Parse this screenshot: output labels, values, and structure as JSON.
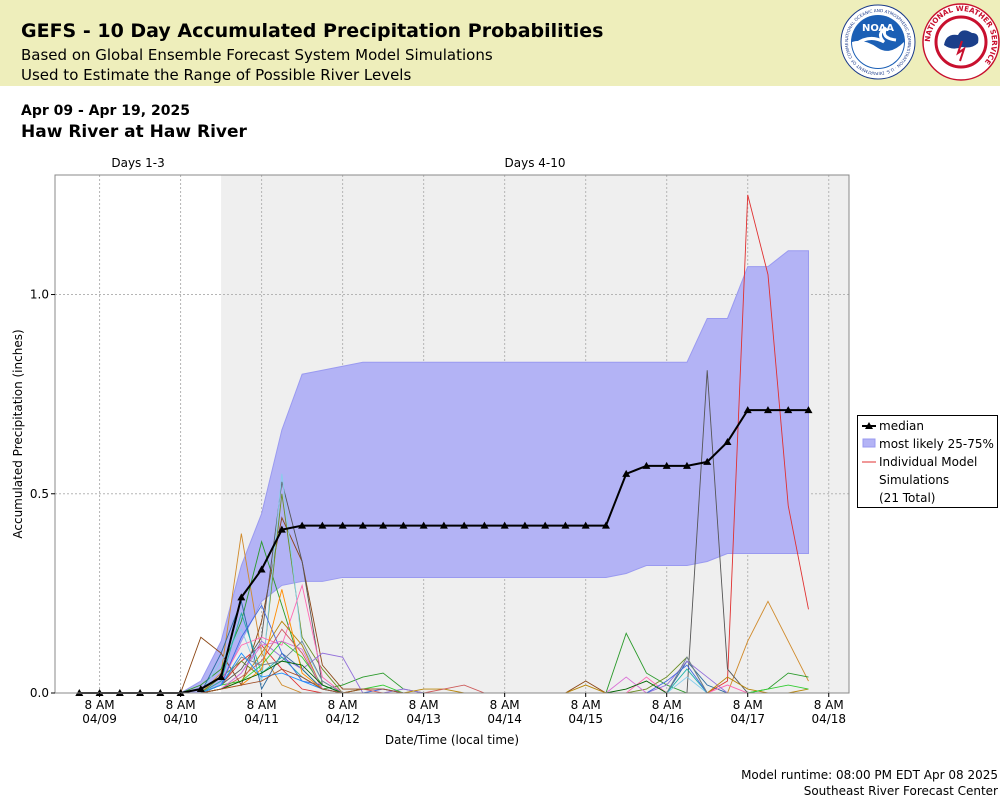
{
  "header": {
    "title": "GEFS - 10 Day Accumulated Precipitation Probabilities",
    "subtitle1": "Based on Global Ensemble Forecast System Model Simulations",
    "subtitle2": "Used to Estimate the Range of Possible River Levels",
    "logo_noaa_text": "NOAA",
    "logo_noaa_ring": "NATIONAL OCEANIC AND ATMOSPHERIC ADMINISTRATION · U.S. DEPARTMENT OF COMMERCE",
    "logo_nws_ring": "NATIONAL WEATHER SERVICE"
  },
  "date_range": "Apr 09 - Apr 19, 2025",
  "station": "Haw River at Haw River",
  "footer": {
    "runtime": "Model runtime: 08:00 PM EDT Apr 08 2025",
    "center": "Southeast River Forecast Center"
  },
  "colors": {
    "header_bg": "#eeeebb",
    "band": "#b3b3f5",
    "band_edge": "#9a9af0",
    "days410_bg": "#efefef",
    "median": "#000000"
  },
  "chart_data": {
    "type": "line",
    "section_labels": [
      "Days 1-3",
      "Days 4-10"
    ],
    "section_split_x": 1.5,
    "xlabel": "Date/Time (local time)",
    "ylabel": "Accumulated Precipitation (inches)",
    "xlim": [
      -0.55,
      9.25
    ],
    "ylim": [
      0,
      1.3
    ],
    "yticks": [
      0.0,
      0.5,
      1.0
    ],
    "ytick_labels": [
      "0.0",
      "0.5",
      "1.0"
    ],
    "xticks": [
      0,
      1,
      2,
      3,
      4,
      5,
      6,
      7,
      8,
      9
    ],
    "xtick_line1": [
      "8 AM",
      "8 AM",
      "8 AM",
      "8 AM",
      "8 AM",
      "8 AM",
      "8 AM",
      "8 AM",
      "8 AM",
      "8 AM"
    ],
    "xtick_line2": [
      "04/09",
      "04/10",
      "04/11",
      "04/12",
      "04/13",
      "04/14",
      "04/15",
      "04/16",
      "04/17",
      "04/18"
    ],
    "grid": true,
    "legend_position": "right",
    "legend": {
      "median": "median",
      "band": "most likely 25-75%",
      "ind_line1": "Individual Model",
      "ind_line2": "Simulations",
      "ind_line3": "(21 Total)"
    },
    "x": [
      -0.25,
      0,
      0.25,
      0.5,
      0.75,
      1,
      1.25,
      1.5,
      1.75,
      2,
      2.25,
      2.5,
      2.75,
      3,
      3.25,
      3.5,
      3.75,
      4,
      4.25,
      4.5,
      4.75,
      5,
      5.25,
      5.5,
      5.75,
      6,
      6.25,
      6.5,
      6.75,
      7,
      7.25,
      7.5,
      7.75,
      8,
      8.25,
      8.5,
      8.75
    ],
    "median": [
      0,
      0,
      0,
      0,
      0,
      0,
      0.01,
      0.04,
      0.24,
      0.31,
      0.41,
      0.42,
      0.42,
      0.42,
      0.42,
      0.42,
      0.42,
      0.42,
      0.42,
      0.42,
      0.42,
      0.42,
      0.42,
      0.42,
      0.42,
      0.42,
      0.42,
      0.55,
      0.57,
      0.57,
      0.57,
      0.58,
      0.63,
      0.71,
      0.71,
      0.71,
      0.71
    ],
    "p25": [
      0,
      0,
      0,
      0,
      0,
      0,
      0,
      0.02,
      0.13,
      0.23,
      0.27,
      0.28,
      0.28,
      0.29,
      0.29,
      0.29,
      0.29,
      0.29,
      0.29,
      0.29,
      0.29,
      0.29,
      0.29,
      0.29,
      0.29,
      0.29,
      0.29,
      0.3,
      0.32,
      0.32,
      0.32,
      0.33,
      0.35,
      0.35,
      0.35,
      0.35,
      0.35
    ],
    "p75": [
      0,
      0,
      0,
      0,
      0,
      0,
      0.03,
      0.13,
      0.32,
      0.45,
      0.66,
      0.8,
      0.81,
      0.82,
      0.83,
      0.83,
      0.83,
      0.83,
      0.83,
      0.83,
      0.83,
      0.83,
      0.83,
      0.83,
      0.83,
      0.83,
      0.83,
      0.83,
      0.83,
      0.83,
      0.83,
      0.94,
      0.94,
      1.07,
      1.07,
      1.11,
      1.11
    ],
    "members": [
      {
        "color": "#e03030",
        "values": [
          0,
          0,
          0,
          0,
          0,
          0,
          0,
          0.02,
          0.08,
          0.12,
          0.06,
          0.01,
          0,
          0,
          0,
          0,
          0,
          0,
          0,
          0,
          0,
          0,
          0,
          0,
          0,
          0,
          0,
          0,
          0,
          0,
          0,
          0,
          0.03,
          1.25,
          1.05,
          0.47,
          0.21
        ]
      },
      {
        "color": "#d08a2a",
        "values": [
          0,
          0,
          0,
          0,
          0,
          0,
          0,
          0.05,
          0.4,
          0.1,
          0.02,
          0,
          0,
          0,
          0,
          0,
          0,
          0,
          0,
          0,
          0,
          0,
          0,
          0,
          0,
          0,
          0,
          0,
          0,
          0,
          0,
          0,
          0,
          0.13,
          0.23,
          0.13,
          0.03
        ]
      },
      {
        "color": "#2a9a2a",
        "values": [
          0,
          0,
          0,
          0,
          0,
          0,
          0.02,
          0.06,
          0.18,
          0.38,
          0.22,
          0.06,
          0.01,
          0.02,
          0.04,
          0.05,
          0.01,
          0,
          0,
          0,
          0,
          0,
          0,
          0,
          0,
          0,
          0,
          0.15,
          0.05,
          0.02,
          0,
          0,
          0,
          0,
          0.01,
          0.05,
          0.04
        ]
      },
      {
        "color": "#2a6aa0",
        "values": [
          0,
          0,
          0,
          0,
          0,
          0,
          0,
          0.1,
          0.23,
          0.01,
          0.1,
          0.06,
          0.01,
          0,
          0,
          0,
          0,
          0,
          0,
          0,
          0,
          0,
          0,
          0,
          0,
          0,
          0,
          0,
          0,
          0,
          0.08,
          0.02,
          0,
          0,
          0,
          0,
          0
        ]
      },
      {
        "color": "#8b4513",
        "values": [
          0,
          0,
          0,
          0,
          0,
          0,
          0.14,
          0.1,
          0.02,
          0.18,
          0.44,
          0.33,
          0.07,
          0.01,
          0.01,
          0.01,
          0,
          0,
          0,
          0,
          0,
          0,
          0,
          0,
          0,
          0.03,
          0,
          0,
          0,
          0,
          0,
          0,
          0,
          0,
          0,
          0,
          0
        ]
      },
      {
        "color": "#6b8e23",
        "values": [
          0,
          0,
          0,
          0,
          0,
          0,
          0,
          0.04,
          0.08,
          0.04,
          0.5,
          0.14,
          0.06,
          0,
          0,
          0,
          0,
          0,
          0,
          0,
          0,
          0,
          0,
          0,
          0,
          0,
          0,
          0,
          0.01,
          0.04,
          0.09,
          0,
          0,
          0,
          0,
          0,
          0
        ]
      },
      {
        "color": "#555555",
        "values": [
          0,
          0,
          0,
          0,
          0,
          0,
          0,
          0.02,
          0.06,
          0.14,
          0.53,
          0.33,
          0.02,
          0,
          0,
          0,
          0,
          0,
          0,
          0,
          0,
          0,
          0,
          0,
          0,
          0,
          0,
          0,
          0,
          0,
          0,
          0.81,
          0.06,
          0,
          0,
          0,
          0
        ]
      },
      {
        "color": "#87ceeb",
        "values": [
          0,
          0,
          0,
          0,
          0,
          0,
          0,
          0.08,
          0.16,
          0.03,
          0.55,
          0.12,
          0.03,
          0,
          0,
          0,
          0,
          0,
          0,
          0,
          0,
          0,
          0,
          0,
          0,
          0,
          0,
          0,
          0,
          0,
          0.04,
          0,
          0,
          0,
          0,
          0,
          0
        ]
      },
      {
        "color": "#ff69b4",
        "values": [
          0,
          0,
          0,
          0,
          0,
          0,
          0,
          0.03,
          0.12,
          0.14,
          0.12,
          0.27,
          0.04,
          0,
          0,
          0,
          0,
          0,
          0,
          0,
          0,
          0,
          0,
          0,
          0,
          0,
          0,
          0,
          0.04,
          0,
          0,
          0,
          0.02,
          0,
          0,
          0,
          0
        ]
      },
      {
        "color": "#9370db",
        "values": [
          0,
          0,
          0,
          0,
          0,
          0,
          0,
          0.01,
          0.05,
          0.13,
          0.09,
          0.06,
          0.1,
          0.09,
          0,
          0,
          0.01,
          0,
          0,
          0,
          0,
          0,
          0,
          0,
          0,
          0,
          0,
          0,
          0,
          0.02,
          0.08,
          0.04,
          0,
          0,
          0,
          0,
          0
        ]
      },
      {
        "color": "#20b2aa",
        "values": [
          0,
          0,
          0,
          0,
          0,
          0,
          0,
          0.03,
          0.2,
          0.05,
          0.09,
          0.04,
          0.01,
          0,
          0,
          0,
          0,
          0,
          0,
          0,
          0,
          0,
          0,
          0,
          0,
          0,
          0,
          0,
          0,
          0,
          0.06,
          0,
          0,
          0,
          0,
          0,
          0
        ]
      },
      {
        "color": "#b8860b",
        "values": [
          0,
          0,
          0,
          0,
          0,
          0,
          0,
          0.01,
          0.03,
          0.1,
          0.18,
          0.12,
          0.01,
          0,
          0,
          0,
          0,
          0.01,
          0.01,
          0,
          0,
          0,
          0,
          0,
          0,
          0.02,
          0,
          0,
          0,
          0,
          0,
          0,
          0.04,
          0.01,
          0,
          0,
          0.01
        ]
      },
      {
        "color": "#4169e1",
        "values": [
          0,
          0,
          0,
          0,
          0,
          0,
          0,
          0.02,
          0.14,
          0.22,
          0.1,
          0.03,
          0.02,
          0,
          0,
          0.01,
          0,
          0,
          0,
          0,
          0,
          0,
          0,
          0,
          0,
          0,
          0,
          0,
          0,
          0.03,
          0.07,
          0,
          0,
          0,
          0,
          0,
          0
        ]
      },
      {
        "color": "#cd5c5c",
        "values": [
          0,
          0,
          0,
          0,
          0,
          0,
          0,
          0.01,
          0.04,
          0.08,
          0.16,
          0.1,
          0.01,
          0,
          0.01,
          0,
          0,
          0,
          0.01,
          0.02,
          0,
          0,
          0,
          0,
          0,
          0,
          0,
          0,
          0,
          0,
          0,
          0,
          0,
          0,
          0,
          0,
          0
        ]
      },
      {
        "color": "#32cd32",
        "values": [
          0,
          0,
          0,
          0,
          0,
          0,
          0,
          0.02,
          0.03,
          0.07,
          0.13,
          0.09,
          0.02,
          0,
          0.01,
          0.02,
          0,
          0,
          0,
          0,
          0,
          0,
          0,
          0,
          0,
          0,
          0,
          0,
          0,
          0,
          0,
          0,
          0,
          0,
          0.01,
          0.02,
          0.01
        ]
      },
      {
        "color": "#da70d6",
        "values": [
          0,
          0,
          0,
          0,
          0,
          0,
          0,
          0.01,
          0.05,
          0.12,
          0.13,
          0.11,
          0.01,
          0,
          0,
          0,
          0,
          0,
          0,
          0,
          0,
          0,
          0,
          0,
          0,
          0,
          0,
          0.04,
          0,
          0,
          0,
          0,
          0,
          0,
          0,
          0,
          0
        ]
      },
      {
        "color": "#708090",
        "values": [
          0,
          0,
          0,
          0,
          0,
          0,
          0,
          0.02,
          0.09,
          0.07,
          0.08,
          0.13,
          0.03,
          0,
          0,
          0,
          0,
          0,
          0,
          0,
          0,
          0,
          0,
          0,
          0,
          0,
          0,
          0,
          0,
          0,
          0.09,
          0,
          0,
          0,
          0,
          0,
          0
        ]
      },
      {
        "color": "#ff8c00",
        "values": [
          0,
          0,
          0,
          0,
          0,
          0,
          0,
          0.01,
          0.02,
          0.06,
          0.26,
          0.05,
          0.01,
          0,
          0,
          0,
          0,
          0,
          0,
          0,
          0,
          0,
          0,
          0,
          0,
          0,
          0,
          0,
          0,
          0,
          0,
          0,
          0,
          0,
          0,
          0,
          0
        ]
      },
      {
        "color": "#006400",
        "values": [
          0,
          0,
          0,
          0,
          0,
          0,
          0,
          0.01,
          0.03,
          0.05,
          0.08,
          0.07,
          0.02,
          0,
          0,
          0,
          0,
          0,
          0,
          0,
          0,
          0,
          0,
          0,
          0,
          0,
          0,
          0.01,
          0.03,
          0,
          0,
          0,
          0,
          0,
          0,
          0,
          0
        ]
      },
      {
        "color": "#1e90ff",
        "values": [
          0,
          0,
          0,
          0,
          0,
          0,
          0,
          0.02,
          0.1,
          0.04,
          0.05,
          0.03,
          0.01,
          0,
          0,
          0,
          0,
          0,
          0,
          0,
          0,
          0,
          0,
          0,
          0,
          0,
          0,
          0,
          0,
          0,
          0,
          0,
          0,
          0,
          0,
          0,
          0
        ]
      },
      {
        "color": "#a0522d",
        "values": [
          0,
          0,
          0,
          0,
          0,
          0,
          0,
          0.01,
          0.02,
          0.03,
          0.06,
          0.04,
          0.01,
          0,
          0.01,
          0.01,
          0,
          0,
          0,
          0,
          0,
          0,
          0,
          0,
          0,
          0,
          0,
          0,
          0,
          0,
          0,
          0,
          0,
          0,
          0,
          0,
          0
        ]
      }
    ]
  }
}
